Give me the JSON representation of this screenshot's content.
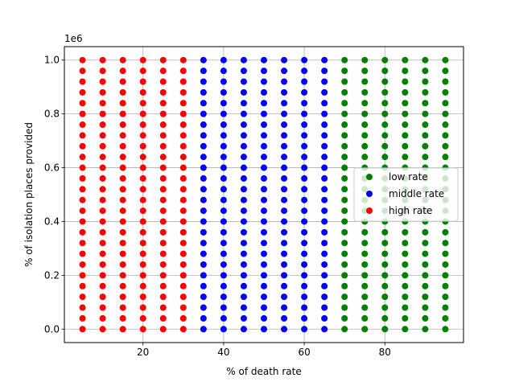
{
  "chart_data": {
    "type": "scatter",
    "title": "",
    "xlabel": "% of death rate",
    "ylabel": "% of isolation places provided",
    "y_offset_text": "1e6",
    "xlim": [
      0.5,
      99.5
    ],
    "ylim": [
      -50000,
      1050000
    ],
    "x_ticks": [
      20,
      40,
      60,
      80
    ],
    "x_tick_labels": [
      "20",
      "40",
      "60",
      "80"
    ],
    "y_ticks": [
      0,
      200000,
      400000,
      600000,
      800000,
      1000000
    ],
    "y_tick_labels": [
      "0.0",
      "0.2",
      "0.4",
      "0.6",
      "0.8",
      "1.0"
    ],
    "grid": true,
    "legend_position": "center-right",
    "y_values": [
      0,
      40000,
      80000,
      120000,
      160000,
      200000,
      240000,
      280000,
      320000,
      360000,
      400000,
      440000,
      480000,
      520000,
      560000,
      600000,
      640000,
      680000,
      720000,
      760000,
      800000,
      840000,
      880000,
      920000,
      960000,
      1000000
    ],
    "series": [
      {
        "name": "low rate",
        "color": "#008000",
        "x": [
          70,
          75,
          80,
          85,
          90,
          95
        ]
      },
      {
        "name": "middle rate",
        "color": "#0000ff",
        "x": [
          35,
          40,
          45,
          50,
          55,
          60,
          65
        ]
      },
      {
        "name": "high rate",
        "color": "#ff0000",
        "x": [
          5,
          10,
          15,
          20,
          25,
          30
        ]
      }
    ]
  }
}
